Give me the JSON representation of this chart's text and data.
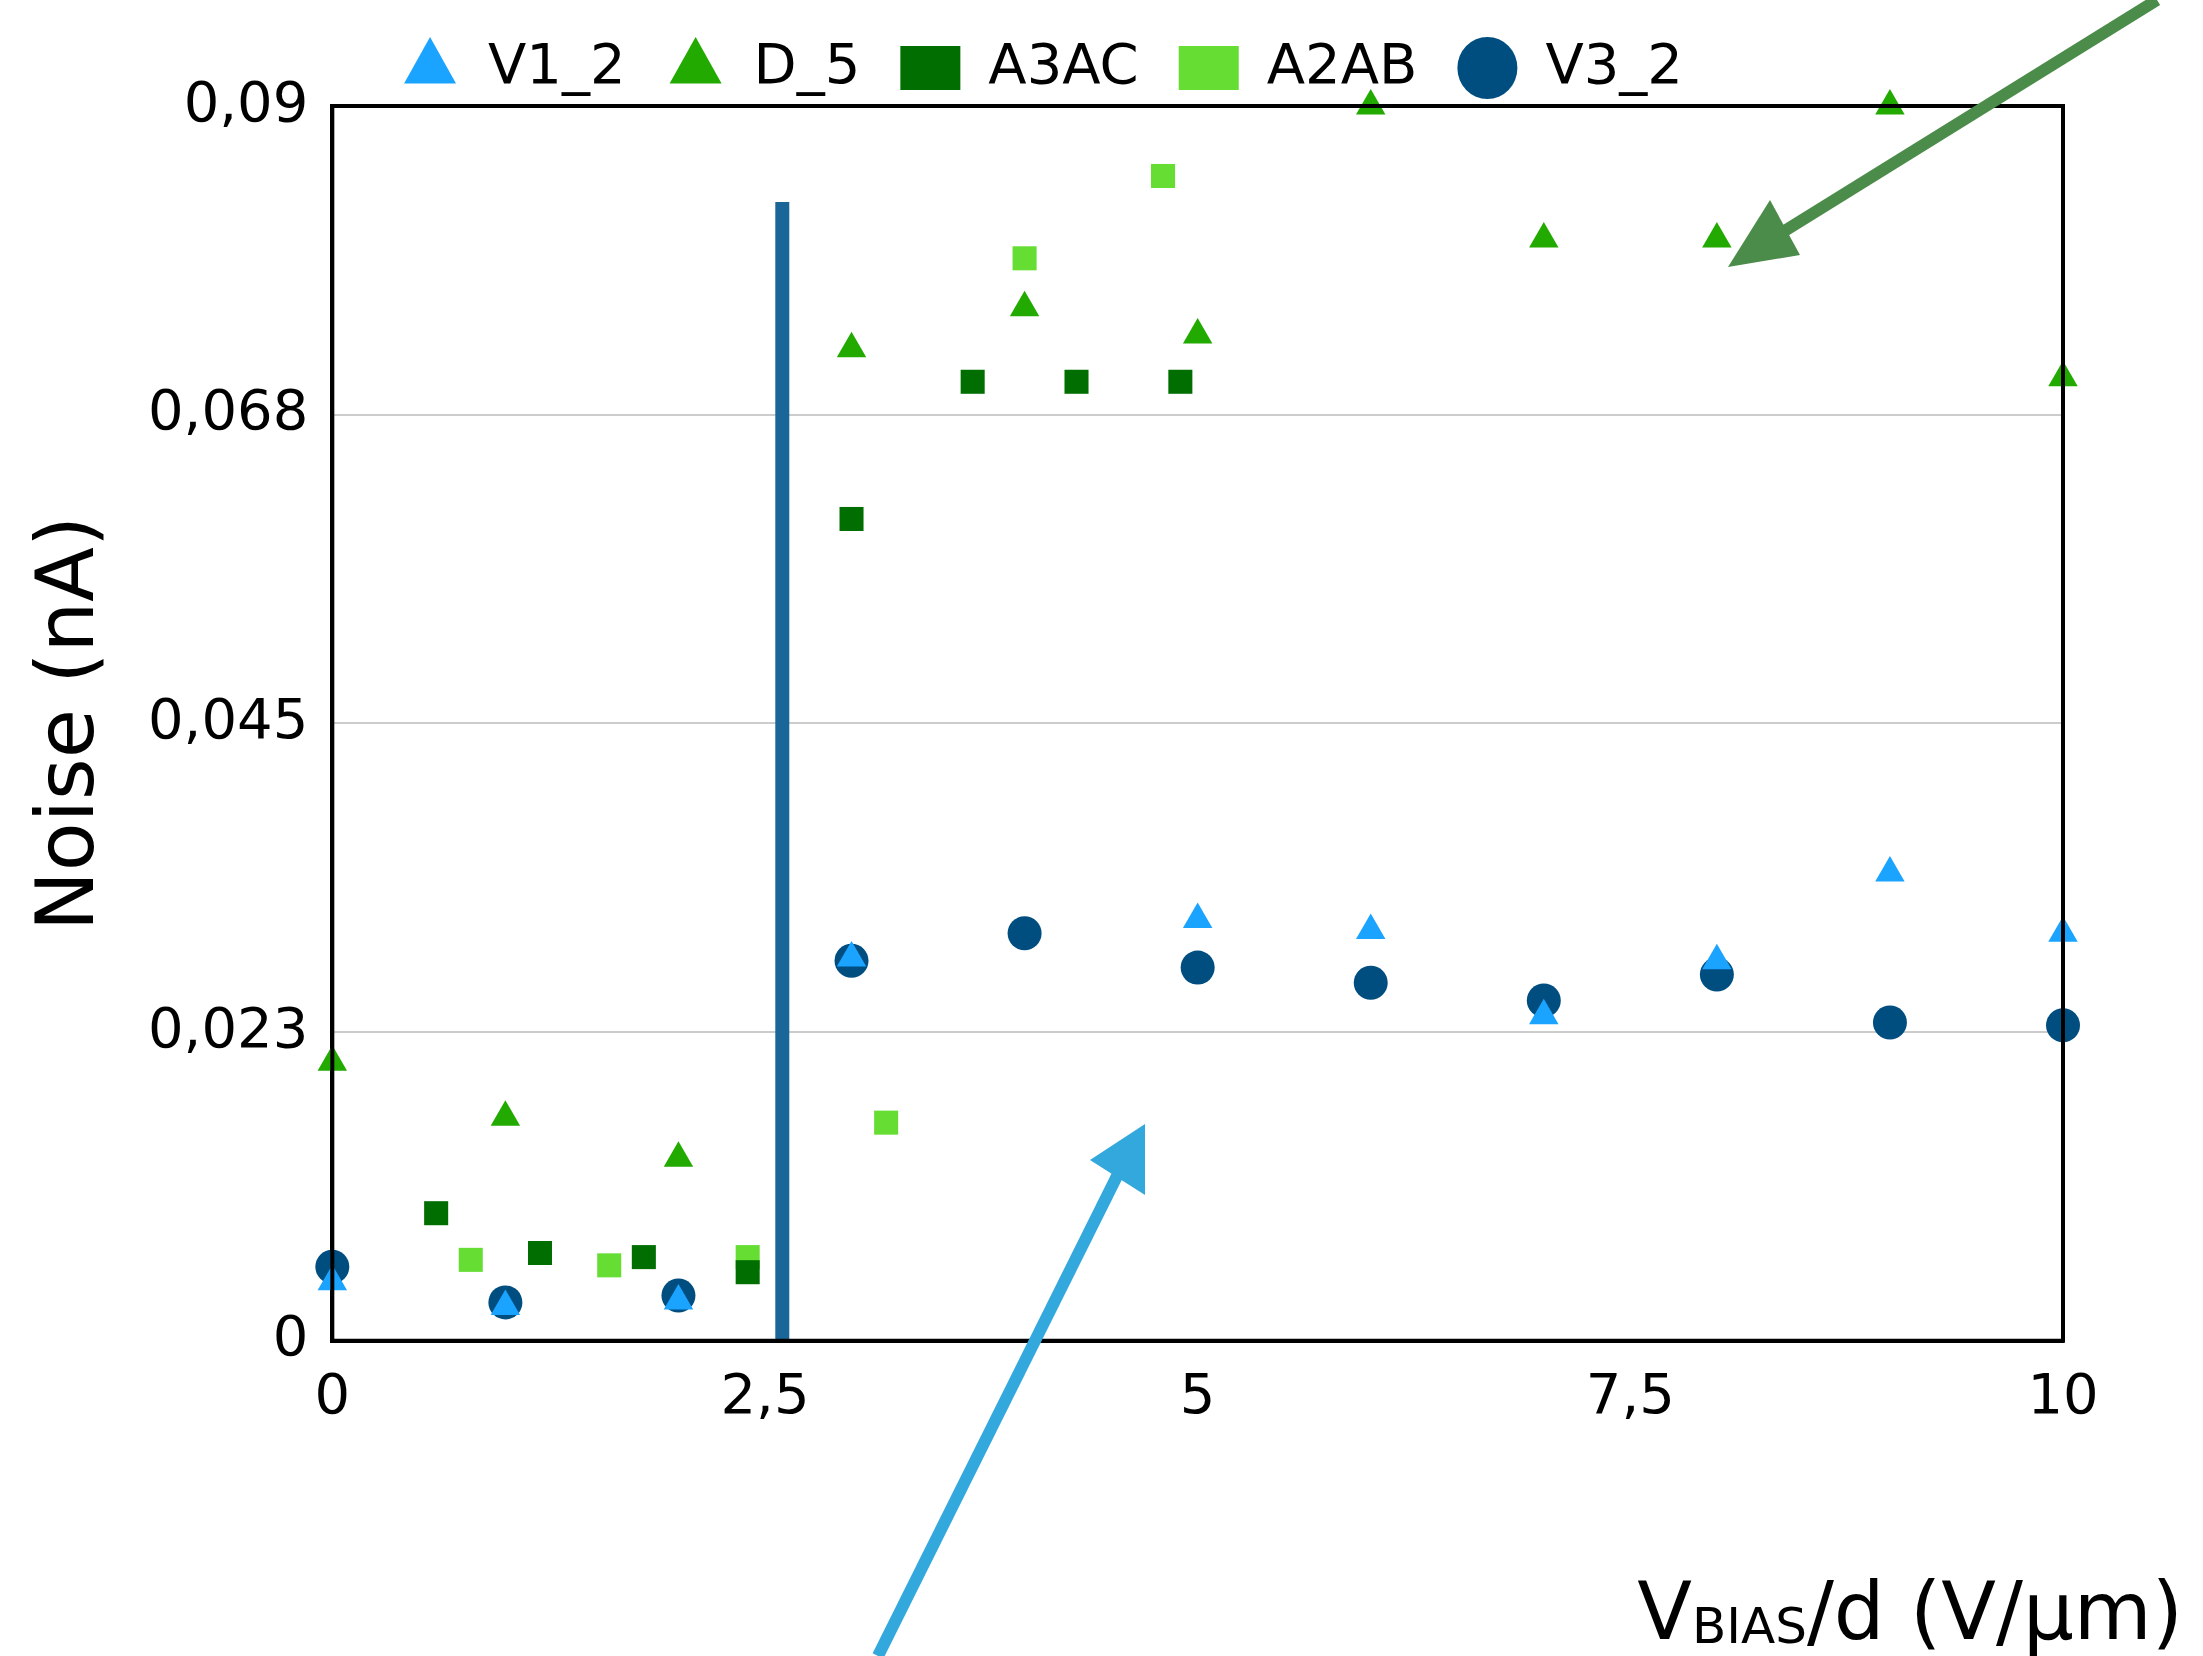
{
  "chart_data": {
    "type": "scatter",
    "xlabel": "V$_{BIAS}$/d (V/µm)",
    "ylabel": "Noise (nA)",
    "xlim": [
      0,
      10
    ],
    "xticks": [
      0,
      {
        "value": 2.5,
        "label": "2,5"
      },
      5,
      {
        "value": 7.5,
        "label": "7,5"
      },
      10
    ],
    "ylim": [
      0,
      0.09
    ],
    "yticks": [
      0,
      {
        "value": 0.0225,
        "label": "0,023"
      },
      {
        "value": 0.045,
        "label": "0,045"
      },
      {
        "value": 0.0675,
        "label": "0,068"
      },
      {
        "value": 0.09,
        "label": "0,09"
      }
    ],
    "grid": "y",
    "legend": "top",
    "series": [
      {
        "name": "V1_2",
        "color": "#1aa3ff",
        "marker": "triangle",
        "x": [
          0,
          1,
          2,
          3,
          5,
          6,
          7,
          8,
          9,
          10
        ],
        "values": [
          0.0043,
          0.0025,
          0.0029,
          0.0279,
          0.0307,
          0.0299,
          0.0237,
          0.0277,
          0.0341,
          0.0297
        ]
      },
      {
        "name": "D_5",
        "color": "#22aa00",
        "marker": "triangle",
        "x": [
          0,
          1,
          2,
          3,
          4,
          5,
          6,
          7,
          8,
          9,
          10
        ],
        "values": [
          0.0203,
          0.0163,
          0.0133,
          0.0723,
          0.0753,
          0.0733,
          0.09,
          0.0803,
          0.0803,
          0.09,
          0.0702
        ]
      },
      {
        "name": "A3AC",
        "color": "#006e00",
        "marker": "square",
        "x": [
          0.6,
          1.2,
          1.8,
          2.4,
          3.0,
          3.7,
          4.3,
          4.9
        ],
        "values": [
          0.0093,
          0.0064,
          0.0061,
          0.005,
          0.0599,
          0.0699,
          0.0699,
          0.0699
        ]
      },
      {
        "name": "A2AB",
        "color": "#66dd33",
        "marker": "square",
        "x": [
          0.8,
          1.6,
          2.4,
          3.2,
          4.0,
          4.8
        ],
        "values": [
          0.0059,
          0.0055,
          0.0061,
          0.0159,
          0.0789,
          0.0849
        ]
      },
      {
        "name": "V3_2",
        "color": "#004d80",
        "marker": "circle",
        "x": [
          0,
          1,
          2,
          3,
          4,
          5,
          6,
          7,
          8,
          9,
          10
        ],
        "values": [
          0.0054,
          0.0028,
          0.0033,
          0.0277,
          0.0297,
          0.0272,
          0.0261,
          0.0248,
          0.0267,
          0.0232,
          0.023
        ]
      },
      {
        "type": "line",
        "color": "#1a6699",
        "marker": "none",
        "x": [
          2.6,
          2.6
        ],
        "values": [
          0,
          0.083
        ]
      }
    ]
  }
}
